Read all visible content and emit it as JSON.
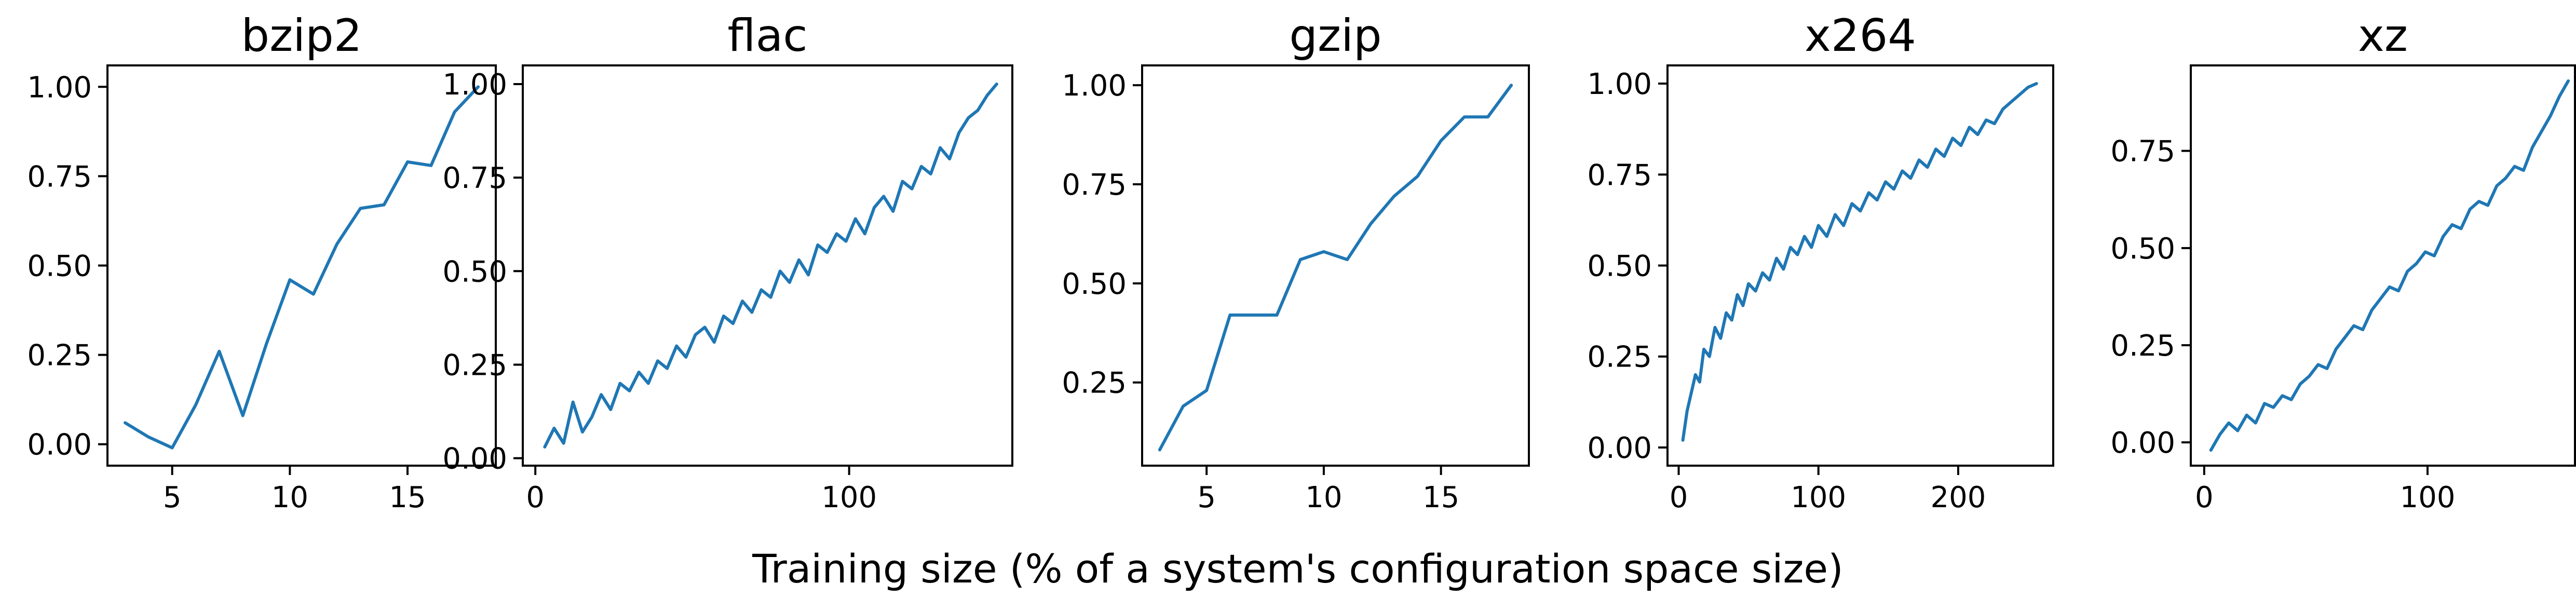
{
  "figure": {
    "xlabel": "Training size (% of a system's configuration space size)"
  },
  "colors": {
    "line": "#1f77b4",
    "axes": "#000000",
    "background": "#ffffff"
  },
  "chart_data": [
    {
      "type": "line",
      "title": "bzip2",
      "xlim": [
        2.25,
        18.75
      ],
      "ylim": [
        -0.06,
        1.06
      ],
      "xticks": [
        5,
        10,
        15
      ],
      "yticks": [
        0.0,
        0.25,
        0.5,
        0.75,
        1.0
      ],
      "yticklabels": [
        "0.00",
        "0.25",
        "0.50",
        "0.75",
        "1.00"
      ],
      "x": [
        3,
        4,
        5,
        6,
        7,
        8,
        9,
        10,
        11,
        12,
        13,
        14,
        15,
        16,
        17,
        18
      ],
      "y": [
        0.06,
        0.02,
        -0.01,
        0.11,
        0.26,
        0.08,
        0.28,
        0.46,
        0.42,
        0.56,
        0.66,
        0.67,
        0.79,
        0.78,
        0.93,
        1.0
      ]
    },
    {
      "type": "line",
      "title": "flac",
      "xlim": [
        -4,
        152
      ],
      "ylim": [
        -0.02,
        1.05
      ],
      "xticks": [
        0,
        100
      ],
      "yticks": [
        0.0,
        0.25,
        0.5,
        0.75,
        1.0
      ],
      "yticklabels": [
        "0.00",
        "0.25",
        "0.50",
        "0.75",
        "1.00"
      ],
      "x": [
        3,
        6,
        9,
        12,
        15,
        18,
        21,
        24,
        27,
        30,
        33,
        36,
        39,
        42,
        45,
        48,
        51,
        54,
        57,
        60,
        63,
        66,
        69,
        72,
        75,
        78,
        81,
        84,
        87,
        90,
        93,
        96,
        99,
        102,
        105,
        108,
        111,
        114,
        117,
        120,
        123,
        126,
        129,
        132,
        135,
        138,
        141,
        144,
        147
      ],
      "y": [
        0.03,
        0.08,
        0.04,
        0.15,
        0.07,
        0.11,
        0.17,
        0.13,
        0.2,
        0.18,
        0.23,
        0.2,
        0.26,
        0.24,
        0.3,
        0.27,
        0.33,
        0.35,
        0.31,
        0.38,
        0.36,
        0.42,
        0.39,
        0.45,
        0.43,
        0.5,
        0.47,
        0.53,
        0.49,
        0.57,
        0.55,
        0.6,
        0.58,
        0.64,
        0.6,
        0.67,
        0.7,
        0.66,
        0.74,
        0.72,
        0.78,
        0.76,
        0.83,
        0.8,
        0.87,
        0.91,
        0.93,
        0.97,
        1.0
      ]
    },
    {
      "type": "line",
      "title": "gzip",
      "xlim": [
        2.25,
        18.75
      ],
      "ylim": [
        0.04,
        1.05
      ],
      "xticks": [
        5,
        10,
        15
      ],
      "yticks": [
        0.25,
        0.5,
        0.75,
        1.0
      ],
      "yticklabels": [
        "0.25",
        "0.50",
        "0.75",
        "1.00"
      ],
      "x": [
        3,
        4,
        5,
        6,
        7,
        8,
        9,
        10,
        11,
        12,
        13,
        14,
        15,
        16,
        17,
        18
      ],
      "y": [
        0.08,
        0.19,
        0.23,
        0.42,
        0.42,
        0.42,
        0.56,
        0.58,
        0.56,
        0.65,
        0.72,
        0.77,
        0.86,
        0.92,
        0.92,
        1.0
      ]
    },
    {
      "type": "line",
      "title": "x264",
      "xlim": [
        -8,
        268
      ],
      "ylim": [
        -0.05,
        1.05
      ],
      "xticks": [
        0,
        100,
        200
      ],
      "yticks": [
        0.0,
        0.25,
        0.5,
        0.75,
        1.0
      ],
      "yticklabels": [
        "0.00",
        "0.25",
        "0.50",
        "0.75",
        "1.00"
      ],
      "x": [
        3,
        6,
        9,
        12,
        15,
        18,
        22,
        26,
        30,
        34,
        38,
        42,
        46,
        50,
        55,
        60,
        65,
        70,
        75,
        80,
        85,
        90,
        95,
        100,
        106,
        112,
        118,
        124,
        130,
        136,
        142,
        148,
        154,
        160,
        166,
        172,
        178,
        184,
        190,
        196,
        202,
        208,
        214,
        220,
        226,
        232,
        238,
        244,
        250,
        256
      ],
      "y": [
        0.02,
        0.1,
        0.15,
        0.2,
        0.18,
        0.27,
        0.25,
        0.33,
        0.3,
        0.37,
        0.35,
        0.42,
        0.39,
        0.45,
        0.43,
        0.48,
        0.46,
        0.52,
        0.49,
        0.55,
        0.53,
        0.58,
        0.55,
        0.61,
        0.58,
        0.64,
        0.61,
        0.67,
        0.65,
        0.7,
        0.68,
        0.73,
        0.71,
        0.76,
        0.74,
        0.79,
        0.77,
        0.82,
        0.8,
        0.85,
        0.83,
        0.88,
        0.86,
        0.9,
        0.89,
        0.93,
        0.95,
        0.97,
        0.99,
        1.0
      ]
    },
    {
      "type": "line",
      "title": "xz",
      "xlim": [
        -6,
        166
      ],
      "ylim": [
        -0.06,
        0.97
      ],
      "xticks": [
        0,
        100
      ],
      "yticks": [
        0.0,
        0.25,
        0.5,
        0.75
      ],
      "yticklabels": [
        "0.00",
        "0.25",
        "0.50",
        "0.75"
      ],
      "x": [
        3,
        7,
        11,
        15,
        19,
        23,
        27,
        31,
        35,
        39,
        43,
        47,
        51,
        55,
        59,
        63,
        67,
        71,
        75,
        79,
        83,
        87,
        91,
        95,
        99,
        103,
        107,
        111,
        115,
        119,
        123,
        127,
        131,
        135,
        139,
        143,
        147,
        151,
        155,
        159,
        163
      ],
      "y": [
        -0.02,
        0.02,
        0.05,
        0.03,
        0.07,
        0.05,
        0.1,
        0.09,
        0.12,
        0.11,
        0.15,
        0.17,
        0.2,
        0.19,
        0.24,
        0.27,
        0.3,
        0.29,
        0.34,
        0.37,
        0.4,
        0.39,
        0.44,
        0.46,
        0.49,
        0.48,
        0.53,
        0.56,
        0.55,
        0.6,
        0.62,
        0.61,
        0.66,
        0.68,
        0.71,
        0.7,
        0.76,
        0.8,
        0.84,
        0.89,
        0.93
      ]
    }
  ]
}
